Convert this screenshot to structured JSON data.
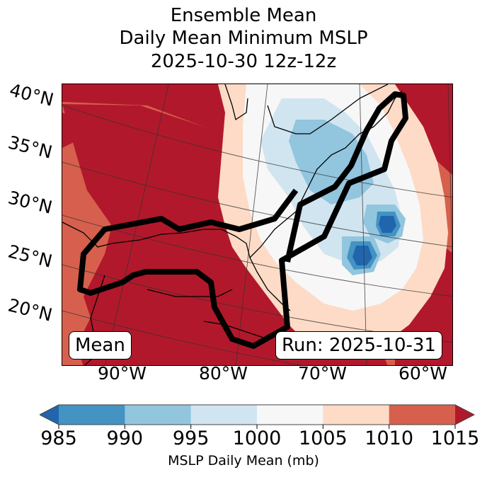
{
  "title": {
    "line1": "Ensemble Mean",
    "line2": "Daily Mean Minimum MSLP",
    "line3": "2025-10-30 12z-12z"
  },
  "map": {
    "lat_labels": [
      "40°N",
      "35°N",
      "30°N",
      "25°N",
      "20°N"
    ],
    "lon_labels": [
      "90°W",
      "80°W",
      "70°W",
      "60°W"
    ],
    "left_box": "Mean",
    "right_box": "Run: 2025-10-31",
    "field_colors": {
      "below_985": "#2166ac",
      "985_990": "#4393c3",
      "990_995": "#92c5de",
      "995_1000": "#d1e5f0",
      "1000_1005": "#f7f7f7",
      "1005_1010": "#fddbc7",
      "1010_1015": "#d6604d",
      "above_1015": "#b2182b"
    },
    "outline_color": "#000000"
  },
  "colorbar": {
    "label": "MSLP Daily Mean (mb)",
    "ticks": [
      "985",
      "990",
      "995",
      "1000",
      "1005",
      "1010",
      "1015"
    ],
    "bins": [
      {
        "from": 985,
        "to": 990,
        "color": "#4393c3"
      },
      {
        "from": 990,
        "to": 995,
        "color": "#92c5de"
      },
      {
        "from": 995,
        "to": 1000,
        "color": "#d1e5f0"
      },
      {
        "from": 1000,
        "to": 1005,
        "color": "#f7f7f7"
      },
      {
        "from": 1005,
        "to": 1010,
        "color": "#fddbc7"
      },
      {
        "from": 1010,
        "to": 1015,
        "color": "#d6604d"
      }
    ],
    "under_color": "#2166ac",
    "over_color": "#b2182b",
    "extend": "both"
  }
}
